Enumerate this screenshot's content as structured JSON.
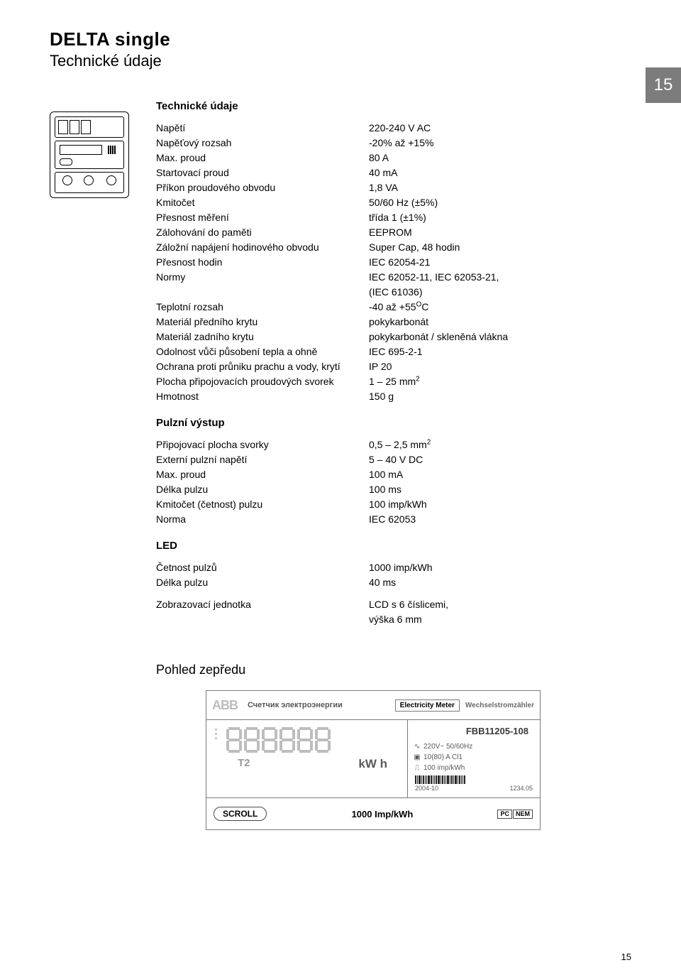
{
  "page": {
    "title": "DELTA single",
    "subtitle": "Technické údaje",
    "badge": "15",
    "footer": "15"
  },
  "sections": {
    "main_title": "Technické údaje",
    "pulse_title": "Pulzní výstup",
    "led_title": "LED",
    "front_view_title": "Pohled zepředu"
  },
  "specs_main": [
    {
      "k": "Napětí",
      "v": "220-240 V AC"
    },
    {
      "k": "Napěťový rozsah",
      "v": "-20% až +15%"
    },
    {
      "k": "Max. proud",
      "v": "80 A"
    },
    {
      "k": "Startovací proud",
      "v": "40 mA"
    },
    {
      "k": "Příkon proudového obvodu",
      "v": "1,8 VA"
    },
    {
      "k": "Kmitočet",
      "v": "50/60 Hz (±5%)"
    },
    {
      "k": "Přesnost měření",
      "v": "třída 1 (±1%)"
    },
    {
      "k": "Zálohování do paměti",
      "v": "EEPROM"
    },
    {
      "k": "Záložní napájení hodinového obvodu",
      "v": "Super Cap, 48 hodin"
    },
    {
      "k": "Přesnost hodin",
      "v": "IEC 62054-21"
    },
    {
      "k": "Normy",
      "v": "IEC 62052-11, IEC 62053-21,"
    },
    {
      "k": "",
      "v": "(IEC 61036)"
    },
    {
      "k": "Teplotní rozsah",
      "v_html": "-40 až +55<sup>O</sup>C"
    },
    {
      "k": "Materiál předního krytu",
      "v": "pokykarbonát"
    },
    {
      "k": "Materiál zadního krytu",
      "v": "pokykarbonát / skleněná vlákna"
    },
    {
      "k": "Odolnost vůči působení tepla a ohně",
      "v": "IEC 695-2-1"
    },
    {
      "k": "Ochrana proti průniku prachu a vody, krytí",
      "v": "IP 20"
    },
    {
      "k": "Plocha připojovacích proudových svorek",
      "v_html": "1 – 25 mm<sup>2</sup>"
    },
    {
      "k": "Hmotnost",
      "v": "150 g"
    }
  ],
  "specs_pulse": [
    {
      "k": "Připojovací plocha svorky",
      "v_html": "0,5 – 2,5 mm<sup>2</sup>"
    },
    {
      "k": "Externí pulzní napětí",
      "v": "5 – 40 V  DC"
    },
    {
      "k": "Max. proud",
      "v": "100 mA"
    },
    {
      "k": "Délka pulzu",
      "v": "100 ms"
    },
    {
      "k": "Kmitočet (četnost) pulzu",
      "v": "100 imp/kWh"
    },
    {
      "k": "Norma",
      "v": "IEC 62053"
    }
  ],
  "specs_led": [
    {
      "k": "Četnost pulzů",
      "v": "1000 imp/kWh"
    },
    {
      "k": "Délka pulzu",
      "v": "40 ms"
    }
  ],
  "specs_display": [
    {
      "k": "Zobrazovací jednotka",
      "v": "LCD s 6 číslicemi,"
    },
    {
      "k": "",
      "v": "výška 6 mm"
    }
  ],
  "panel": {
    "brand": "ABB",
    "sub": "Счетчик электроэнергии",
    "em_label": "Electricity Meter",
    "ger": "Wechselstromzähler",
    "model": "FBB11205-108",
    "rating1": "220V~ 50/60Hz",
    "rating2": "10(80) A Cl1",
    "rating3": "100 imp/kWh",
    "date_left": "2004-10",
    "date_right": "1234.05",
    "tariff": "T2",
    "unit": "kW h",
    "scroll": "SCROLL",
    "led_rate": "1000 Imp/kWh",
    "cert1": "PC",
    "cert2": "NEM",
    "colors": {
      "border": "#7a7a7a",
      "brand_color": "#bdbdbd",
      "text_muted": "#6a6a6a",
      "digit_color": "#bdbdbd"
    }
  }
}
